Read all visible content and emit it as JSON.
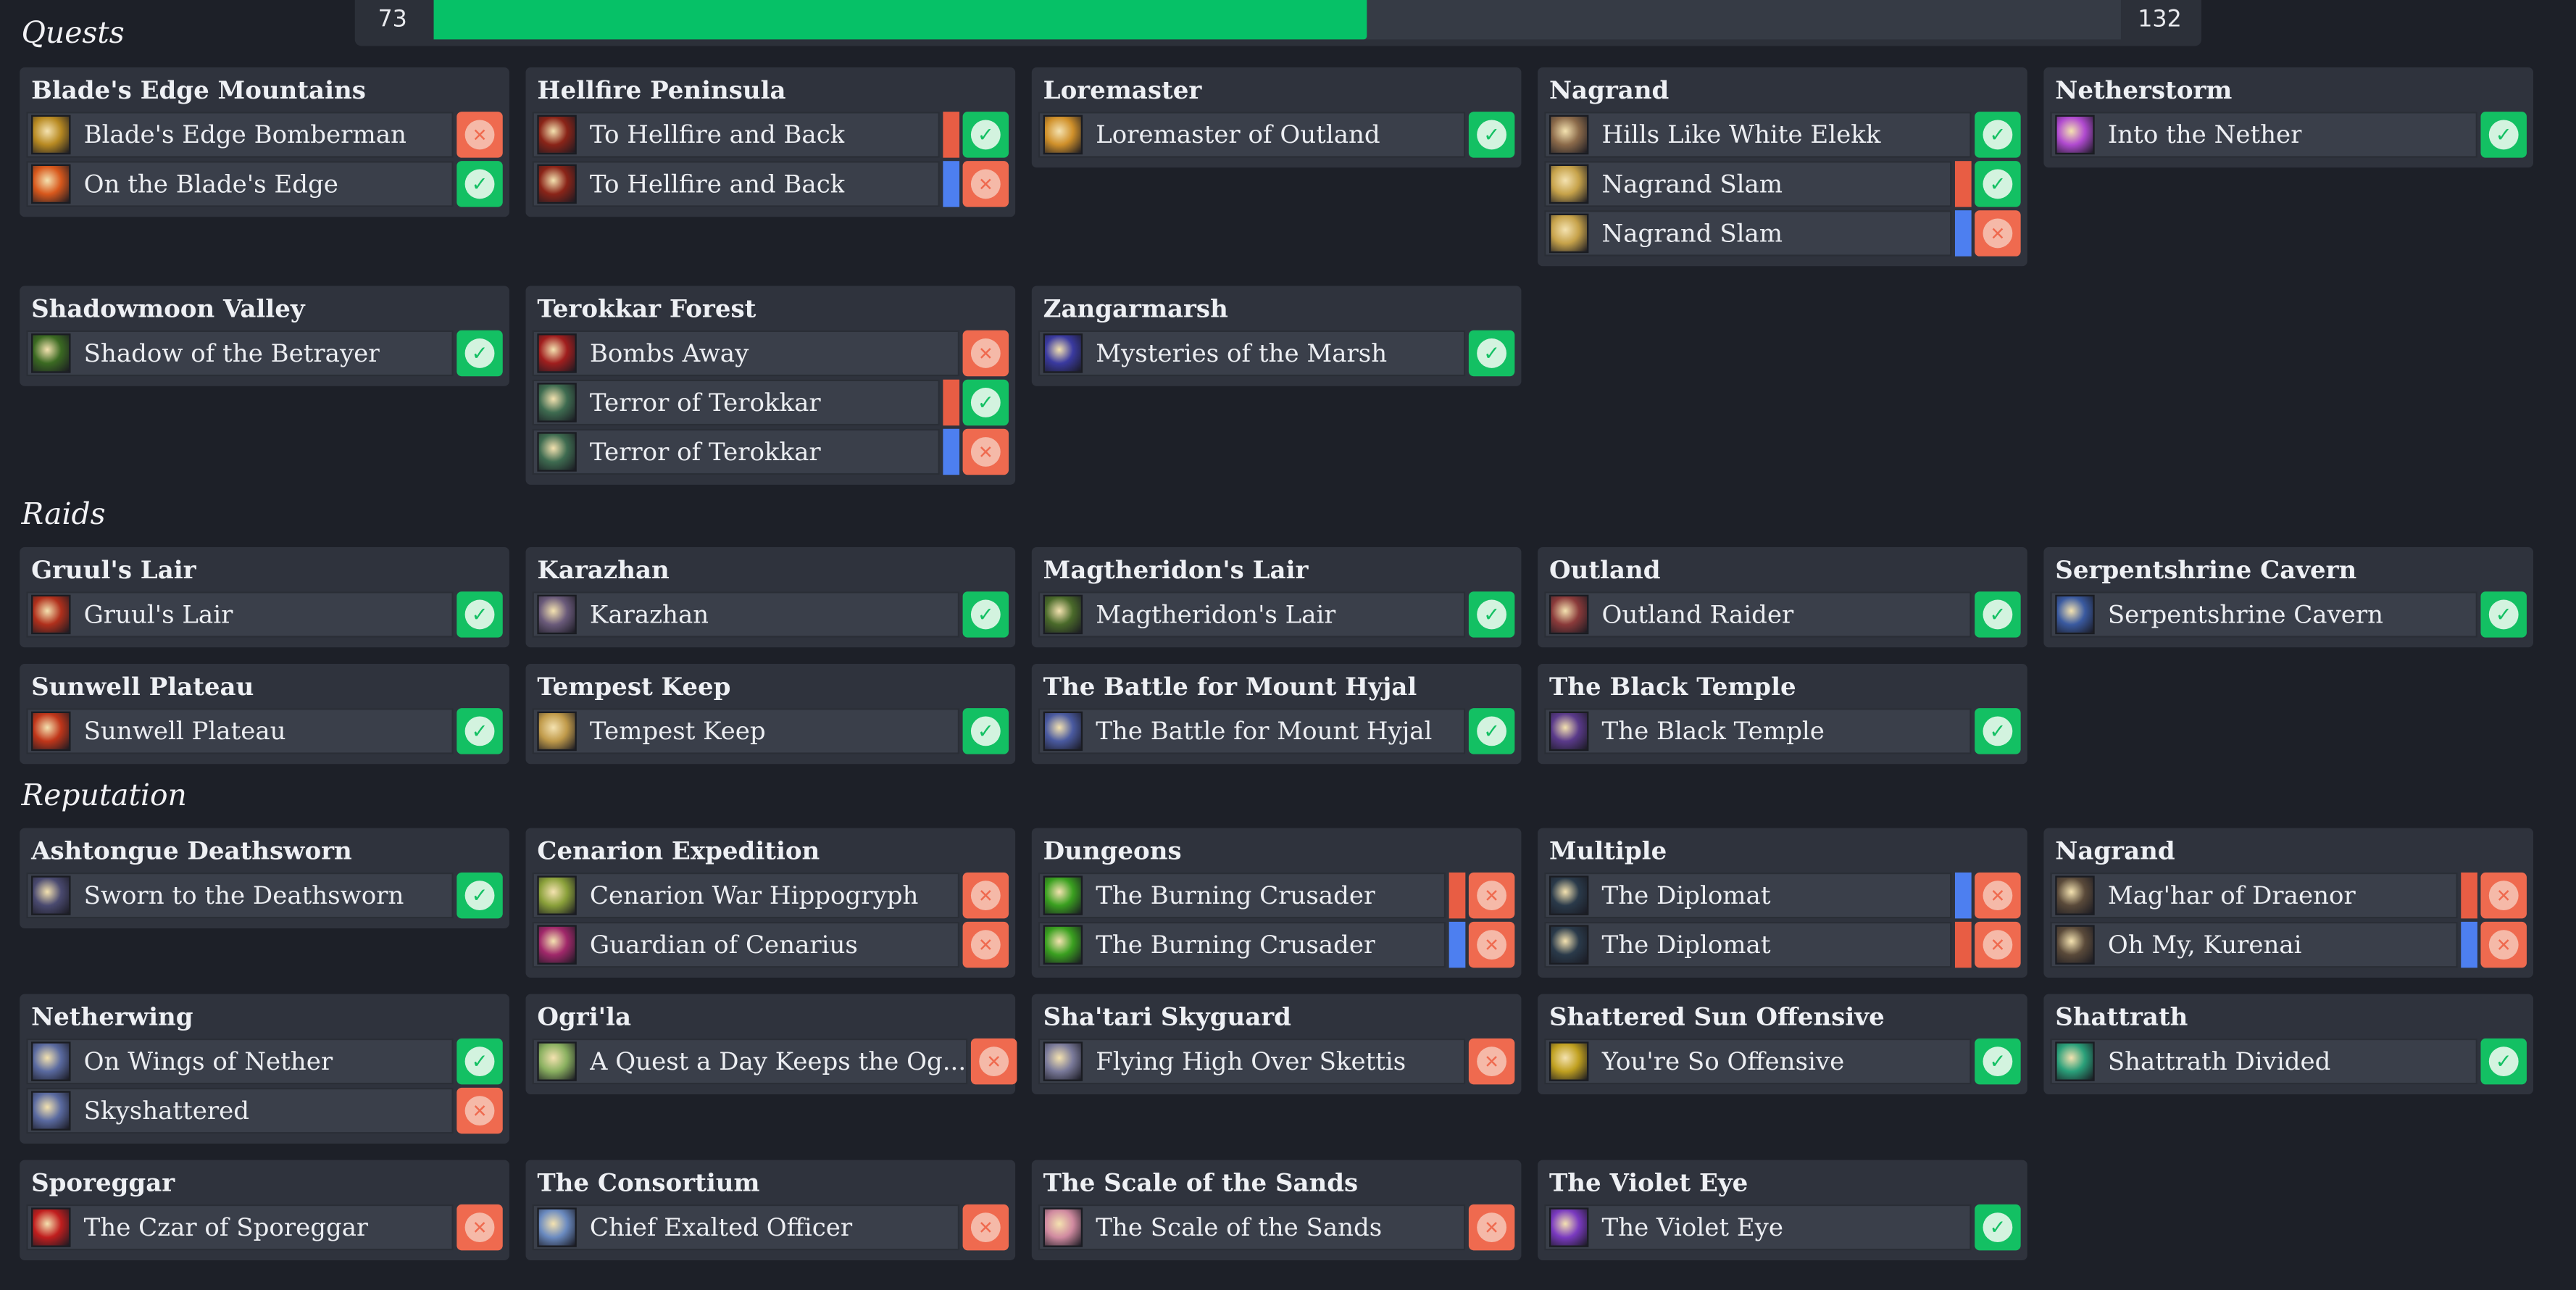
{
  "progress": {
    "current": "73",
    "total": "132",
    "fraction": 0.553
  },
  "colors": {
    "done": "#13c063",
    "todo": "#ef6a4f",
    "horde": "#e85d44",
    "alliance": "#4d7ff0",
    "progress_fill": "#06c167"
  },
  "sections": [
    {
      "title": "Quests",
      "cards": [
        {
          "title": "Blade's Edge Mountains",
          "items": [
            {
              "label": "Blade's Edge Bomberman",
              "done": false,
              "icon": "bomb-goblin-icon",
              "icon_color": "#b88a22"
            },
            {
              "label": "On the Blade's Edge",
              "done": true,
              "icon": "blade-fire-icon",
              "icon_color": "#d8581c"
            }
          ]
        },
        {
          "title": "Hellfire Peninsula",
          "items": [
            {
              "label": "To Hellfire and Back",
              "done": true,
              "faction": "horde",
              "icon": "hellfire-icon",
              "icon_color": "#8a2418"
            },
            {
              "label": "To Hellfire and Back",
              "done": false,
              "faction": "alliance",
              "icon": "hellfire-icon",
              "icon_color": "#8a2418"
            }
          ]
        },
        {
          "title": "Loremaster",
          "items": [
            {
              "label": "Loremaster of Outland",
              "done": true,
              "icon": "loremaster-icon",
              "icon_color": "#d0902a"
            }
          ]
        },
        {
          "title": "Nagrand",
          "items": [
            {
              "label": "Hills Like White Elekk",
              "done": true,
              "icon": "elekk-icon",
              "icon_color": "#8b6a4a"
            },
            {
              "label": "Nagrand Slam",
              "done": true,
              "faction": "horde",
              "icon": "nagrand-slam-icon",
              "icon_color": "#c6a24a"
            },
            {
              "label": "Nagrand Slam",
              "done": false,
              "faction": "alliance",
              "icon": "nagrand-slam-icon",
              "icon_color": "#c6a24a"
            }
          ]
        },
        {
          "title": "Netherstorm",
          "items": [
            {
              "label": "Into the Nether",
              "done": true,
              "icon": "nether-icon",
              "icon_color": "#b04ad0"
            }
          ]
        },
        {
          "title": "Shadowmoon Valley",
          "items": [
            {
              "label": "Shadow of the Betrayer",
              "done": true,
              "icon": "betrayer-icon",
              "icon_color": "#3b6a22"
            }
          ]
        },
        {
          "title": "Terokkar Forest",
          "items": [
            {
              "label": "Bombs Away",
              "done": false,
              "icon": "bomb-icon",
              "icon_color": "#a01e1e"
            },
            {
              "label": "Terror of Terokkar",
              "done": true,
              "faction": "horde",
              "icon": "arakkoa-icon",
              "icon_color": "#3e6b50"
            },
            {
              "label": "Terror of Terokkar",
              "done": false,
              "faction": "alliance",
              "icon": "arakkoa-icon",
              "icon_color": "#3e6b50"
            }
          ]
        },
        {
          "title": "Zangarmarsh",
          "items": [
            {
              "label": "Mysteries of the Marsh",
              "done": true,
              "icon": "marsh-icon",
              "icon_color": "#3a3aa0"
            }
          ]
        }
      ]
    },
    {
      "title": "Raids",
      "cards": [
        {
          "title": "Gruul's Lair",
          "items": [
            {
              "label": "Gruul's Lair",
              "done": true,
              "icon": "gruul-icon",
              "icon_color": "#b0301c"
            }
          ]
        },
        {
          "title": "Karazhan",
          "items": [
            {
              "label": "Karazhan",
              "done": true,
              "icon": "karazhan-icon",
              "icon_color": "#6a5a7a"
            }
          ]
        },
        {
          "title": "Magtheridon's Lair",
          "items": [
            {
              "label": "Magtheridon's Lair",
              "done": true,
              "icon": "magtheridon-icon",
              "icon_color": "#4a6a2a"
            }
          ]
        },
        {
          "title": "Outland",
          "items": [
            {
              "label": "Outland Raider",
              "done": true,
              "icon": "raider-icon",
              "icon_color": "#8a3a3a"
            }
          ]
        },
        {
          "title": "Serpentshrine Cavern",
          "items": [
            {
              "label": "Serpentshrine Cavern",
              "done": true,
              "icon": "vashj-icon",
              "icon_color": "#3a5aa0"
            }
          ]
        },
        {
          "title": "Sunwell Plateau",
          "items": [
            {
              "label": "Sunwell Plateau",
              "done": true,
              "icon": "sunwell-icon",
              "icon_color": "#c0361a"
            }
          ]
        },
        {
          "title": "Tempest Keep",
          "items": [
            {
              "label": "Tempest Keep",
              "done": true,
              "icon": "kaelthas-icon",
              "icon_color": "#c09a4a"
            }
          ]
        },
        {
          "title": "The Battle for Mount Hyjal",
          "items": [
            {
              "label": "The Battle for Mount Hyjal",
              "done": true,
              "icon": "archimonde-icon",
              "icon_color": "#4a5aa0"
            }
          ]
        },
        {
          "title": "The Black Temple",
          "items": [
            {
              "label": "The Black Temple",
              "done": true,
              "icon": "illidan-icon",
              "icon_color": "#5a3a8a"
            }
          ]
        }
      ]
    },
    {
      "title": "Reputation",
      "cards": [
        {
          "title": "Ashtongue Deathsworn",
          "items": [
            {
              "label": "Sworn to the Deathsworn",
              "done": true,
              "icon": "deathsworn-icon",
              "icon_color": "#4a4a70"
            }
          ]
        },
        {
          "title": "Cenarion Expedition",
          "items": [
            {
              "label": "Cenarion War Hippogryph",
              "done": false,
              "icon": "hippogryph-icon",
              "icon_color": "#8aa03a"
            },
            {
              "label": "Guardian of Cenarius",
              "done": false,
              "icon": "cenarius-icon",
              "icon_color": "#a0286a"
            }
          ]
        },
        {
          "title": "Dungeons",
          "items": [
            {
              "label": "The Burning Crusader",
              "done": false,
              "faction": "horde",
              "icon": "fel-icon",
              "icon_color": "#3aa020"
            },
            {
              "label": "The Burning Crusader",
              "done": false,
              "faction": "alliance",
              "icon": "fel-icon",
              "icon_color": "#3aa020"
            }
          ]
        },
        {
          "title": "Multiple",
          "items": [
            {
              "label": "The Diplomat",
              "done": false,
              "faction": "alliance",
              "icon": "diplomat-icon",
              "icon_color": "#2a3a4a"
            },
            {
              "label": "The Diplomat",
              "done": false,
              "faction": "horde",
              "icon": "diplomat-icon",
              "icon_color": "#2a3a4a"
            }
          ]
        },
        {
          "title": "Nagrand",
          "items": [
            {
              "label": "Mag'har of Draenor",
              "done": false,
              "faction": "horde",
              "icon": "maghar-icon",
              "icon_color": "#5a4a3a"
            },
            {
              "label": "Oh My, Kurenai",
              "done": false,
              "faction": "alliance",
              "icon": "kurenai-icon",
              "icon_color": "#5a4a3a"
            }
          ]
        },
        {
          "title": "Netherwing",
          "items": [
            {
              "label": "On Wings of Nether",
              "done": true,
              "icon": "netherdrake-icon",
              "icon_color": "#5a6aa0"
            },
            {
              "label": "Skyshattered",
              "done": false,
              "icon": "netherdrake-icon",
              "icon_color": "#5a6aa0"
            }
          ]
        },
        {
          "title": "Ogri'la",
          "items": [
            {
              "label": "A Quest a Day Keeps the Og...",
              "done": false,
              "icon": "ogrila-icon",
              "icon_color": "#8ab060"
            }
          ]
        },
        {
          "title": "Sha'tari Skyguard",
          "items": [
            {
              "label": "Flying High Over Skettis",
              "done": false,
              "icon": "skyguard-icon",
              "icon_color": "#7a7a9a"
            }
          ]
        },
        {
          "title": "Shattered Sun Offensive",
          "items": [
            {
              "label": "You're So Offensive",
              "done": true,
              "icon": "shattered-sun-icon",
              "icon_color": "#c0a020"
            }
          ]
        },
        {
          "title": "Shattrath",
          "items": [
            {
              "label": "Shattrath Divided",
              "done": true,
              "icon": "shattrath-icon",
              "icon_color": "#2aa07a"
            }
          ]
        },
        {
          "title": "Sporeggar",
          "items": [
            {
              "label": "The Czar of Sporeggar",
              "done": false,
              "icon": "mushroom-icon",
              "icon_color": "#c01e1e"
            }
          ]
        },
        {
          "title": "The Consortium",
          "items": [
            {
              "label": "Chief Exalted Officer",
              "done": false,
              "icon": "consortium-icon",
              "icon_color": "#6a8ac0"
            }
          ]
        },
        {
          "title": "The Scale of the Sands",
          "items": [
            {
              "label": "The Scale of the Sands",
              "done": false,
              "icon": "sands-icon",
              "icon_color": "#d08aa0"
            }
          ]
        },
        {
          "title": "The Violet Eye",
          "items": [
            {
              "label": "The Violet Eye",
              "done": true,
              "icon": "violet-eye-icon",
              "icon_color": "#7a3ac0"
            }
          ]
        }
      ]
    }
  ]
}
